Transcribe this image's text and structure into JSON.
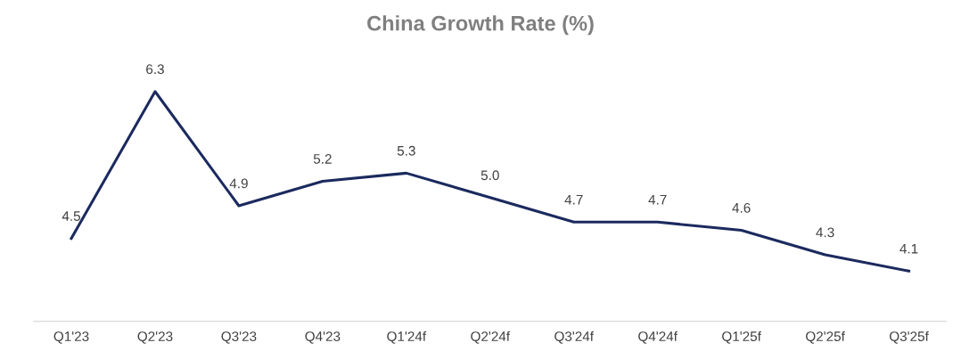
{
  "chart_data": {
    "type": "line",
    "title": "China Growth Rate (%)",
    "categories": [
      "Q1'23",
      "Q2'23",
      "Q3'23",
      "Q4'23",
      "Q1'24f",
      "Q2'24f",
      "Q3'24f",
      "Q4'24f",
      "Q1'25f",
      "Q2'25f",
      "Q3'25f"
    ],
    "series": [
      {
        "color": "#1b2a5e",
        "values": [
          4.5,
          6.3,
          4.9,
          5.2,
          5.3,
          5.0,
          4.7,
          4.7,
          4.6,
          4.3,
          4.1
        ],
        "value_labels": [
          "4.5",
          "6.3",
          "4.9",
          "5.2",
          "5.3",
          "5.0",
          "4.7",
          "4.7",
          "4.6",
          "4.3",
          "4.1"
        ]
      }
    ],
    "grid": false,
    "legend": false,
    "marker": "none",
    "line_style": "solid",
    "tick_labels": "x"
  }
}
